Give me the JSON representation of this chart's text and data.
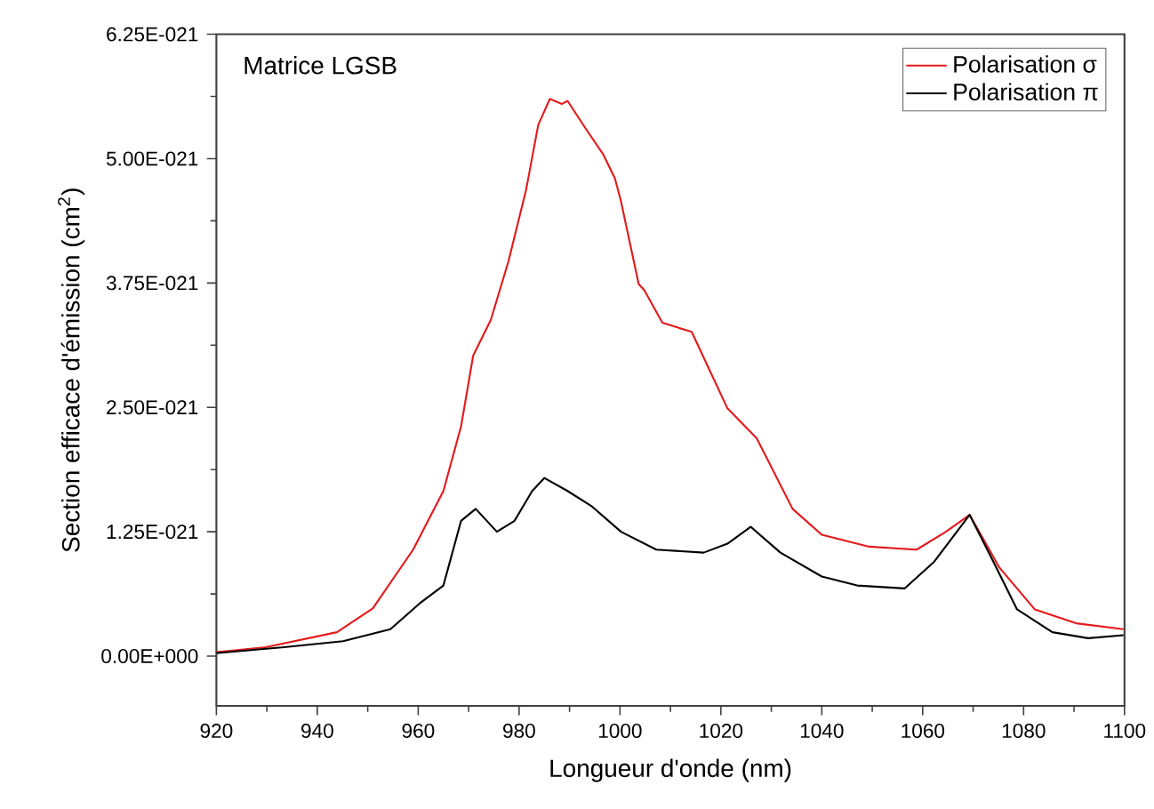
{
  "chart_data": {
    "type": "line",
    "xlabel": "Longueur d'onde (nm)",
    "ylabel": "Section efficace d'émission (cm$^{2}$)",
    "annotations": [
      "Matrice LGSB"
    ],
    "legend": "top right",
    "xlim": [
      920,
      1100
    ],
    "ylim": [
      -5e-22,
      6.25e-21
    ],
    "xticks": [
      920,
      940,
      960,
      980,
      1000,
      1020,
      1040,
      1060,
      1080,
      1100
    ],
    "yticks": [
      {
        "value": 0,
        "label": "0.00E+000"
      },
      {
        "value": 1.25e-21,
        "label": "1.25E-021"
      },
      {
        "value": 2.5e-21,
        "label": "2.50E-021"
      },
      {
        "value": 3.75e-21,
        "label": "3.75E-021"
      },
      {
        "value": 5e-21,
        "label": "5.00E-021"
      },
      {
        "value": 6.25e-21,
        "label": "6.25E-021"
      }
    ],
    "series": [
      {
        "name": "Polarisation σ",
        "color": "#e41a1c",
        "x": [
          920,
          929.8,
          943.9,
          951,
          959,
          965,
          968.5,
          970.9,
          974.4,
          977.9,
          981.4,
          983.8,
          986.1,
          988.5,
          989.6,
          993.1,
          996.7,
          999.0,
          1000.2,
          1003.7,
          1004.8,
          1008.4,
          1014.2,
          1021.3,
          1027.1,
          1034.2,
          1040.0,
          1049.4,
          1058.8,
          1064.6,
          1069.3,
          1075.2,
          1082.2,
          1090.4,
          1099.8
        ],
        "values": [
          4e-23,
          9e-23,
          2.4e-22,
          4.8e-22,
          1.07e-21,
          1.66e-21,
          2.31e-21,
          3.02e-21,
          3.38e-21,
          3.97e-21,
          4.69e-21,
          5.34e-21,
          5.6e-21,
          5.55e-21,
          5.58e-21,
          5.31e-21,
          5.04e-21,
          4.8e-21,
          4.57e-21,
          3.74e-21,
          3.68e-21,
          3.35e-21,
          3.26e-21,
          2.49e-21,
          2.19e-21,
          1.48e-21,
          1.22e-21,
          1.1e-21,
          1.07e-21,
          1.25e-21,
          1.42e-21,
          8.9e-22,
          4.7e-22,
          3.3e-22,
          2.7e-22
        ]
      },
      {
        "name": "Polarisation π",
        "color": "#000000",
        "x": [
          920,
          933.4,
          945.1,
          954.5,
          960.3,
          965,
          968.5,
          971.4,
          975.6,
          979.1,
          982.6,
          985,
          989.6,
          994.3,
          1000.2,
          1007.2,
          1016.6,
          1021.3,
          1025.9,
          1031.8,
          1040,
          1047,
          1056.4,
          1062.3,
          1069.3,
          1074,
          1078.7,
          1085.7,
          1092.8,
          1099.8
        ],
        "values": [
          3e-23,
          9e-23,
          1.5e-22,
          2.7e-22,
          5.3e-22,
          7.1e-22,
          1.36e-21,
          1.48e-21,
          1.25e-21,
          1.36e-21,
          1.66e-21,
          1.79e-21,
          1.66e-21,
          1.51e-21,
          1.25e-21,
          1.07e-21,
          1.04e-21,
          1.13e-21,
          1.3e-21,
          1.04e-21,
          8e-22,
          7.1e-22,
          6.8e-22,
          9.5e-22,
          1.42e-21,
          9.5e-22,
          4.7e-22,
          2.4e-22,
          1.8e-22,
          2.1e-22
        ]
      }
    ]
  }
}
